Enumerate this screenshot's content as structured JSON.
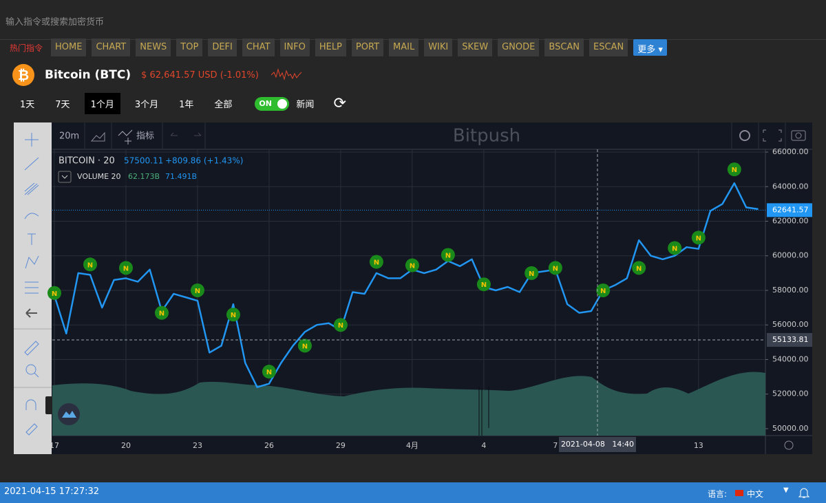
{
  "search_placeholder": "输入指令或搜索加密货币",
  "hot_label": "热门指令",
  "nav": [
    "HOME",
    "CHART",
    "NEWS",
    "TOP",
    "DEFI",
    "CHAT",
    "INFO",
    "HELP",
    "PORT",
    "MAIL",
    "WIKI",
    "SKEW",
    "GNODE",
    "BSCAN",
    "ESCAN"
  ],
  "more": "更多",
  "coin": {
    "name": "Bitcoin (BTC)",
    "price": "$ 62,641.57 USD (-1.01%)"
  },
  "ranges": [
    "1天",
    "7天",
    "1个月",
    "3个月",
    "1年",
    "全部"
  ],
  "toggle": "ON",
  "news_label": "新闻",
  "toolbar": {
    "interval": "20m",
    "indicators": "指标",
    "watermark": "Bitpush"
  },
  "legend": {
    "symbol": "BITCOIN · 20",
    "last": "57500.11",
    "change": "+809.86 (+1.43%)",
    "volume": "VOLUME 20",
    "volume_a": "62.173B",
    "volume_b": "71.491B"
  },
  "chart_data": {
    "type": "line",
    "color": "#2196f3",
    "categories": [
      "17",
      null,
      null,
      null,
      null,
      null,
      "20",
      null,
      null,
      null,
      null,
      null,
      "23",
      null,
      null,
      null,
      null,
      null,
      "26",
      null,
      null,
      null,
      null,
      null,
      "29",
      null,
      null,
      null,
      null,
      null,
      "4月",
      null,
      null,
      null,
      null,
      null,
      "4",
      null,
      null,
      null,
      null,
      null,
      "7",
      null,
      null,
      null,
      null,
      null,
      null,
      null,
      null,
      null,
      null,
      null,
      "13",
      null,
      null,
      null,
      null,
      null
    ],
    "values": [
      57700,
      55500,
      59000,
      58900,
      57000,
      58600,
      58700,
      58500,
      59200,
      56800,
      57800,
      57600,
      57400,
      54400,
      54800,
      57200,
      53800,
      52400,
      52600,
      53800,
      54800,
      55600,
      56000,
      56100,
      55700,
      57900,
      57800,
      59000,
      58700,
      58700,
      59200,
      59000,
      59200,
      59700,
      59400,
      59800,
      58200,
      58000,
      58200,
      57900,
      59000,
      59100,
      59200,
      57200,
      56700,
      56800,
      58000,
      58300,
      58700,
      60900,
      60000,
      59800,
      60000,
      60500,
      60400,
      62600,
      63000,
      64200,
      62800,
      62700
    ],
    "news": [
      57850,
      null,
      null,
      59500,
      null,
      null,
      59300,
      null,
      null,
      56700,
      null,
      null,
      58000,
      null,
      null,
      56600,
      null,
      null,
      53300,
      null,
      null,
      54800,
      null,
      null,
      56000,
      null,
      null,
      59650,
      null,
      null,
      59450,
      null,
      null,
      60050,
      null,
      null,
      58350,
      null,
      null,
      null,
      59000,
      null,
      59300,
      null,
      null,
      null,
      58000,
      null,
      null,
      59300,
      null,
      null,
      60450,
      null,
      61050,
      null,
      null,
      65000,
      null,
      null
    ],
    "news_marker_label": "N",
    "ylim": [
      49600,
      66160
    ],
    "yticks": [
      {
        "value": 50000,
        "label": "50000.00"
      },
      {
        "value": 52000,
        "label": "52000.00"
      },
      {
        "value": 54000,
        "label": "54000.00"
      },
      {
        "value": 56000,
        "label": "56000.00"
      },
      {
        "value": 58000,
        "label": "58000.00"
      },
      {
        "value": 60000,
        "label": "60000.00"
      },
      {
        "value": 62000,
        "label": "62000.00"
      },
      {
        "value": 64000,
        "label": "64000.00"
      },
      {
        "value": 66000,
        "label": "66000.00"
      }
    ],
    "current_price": {
      "value": 62641.57,
      "label": "62641.57"
    },
    "crosshair_price": {
      "value": 55133.81,
      "label": "55133.81"
    },
    "crosshair_time": "2021-04-08   14:40",
    "grid": true
  },
  "footer": {
    "time": "2021-04-15 17:27:32",
    "language_label": "语言:",
    "language": "中文"
  }
}
